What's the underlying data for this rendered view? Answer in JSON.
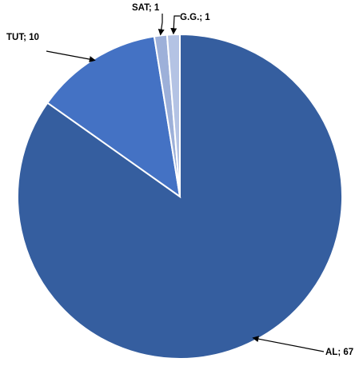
{
  "chart_data": {
    "type": "pie",
    "title": "",
    "slices": [
      {
        "label": "AL",
        "value": 67,
        "color": "#355e9f"
      },
      {
        "label": "TUT",
        "value": 10,
        "color": "#4472c4"
      },
      {
        "label": "SAT",
        "value": 1,
        "color": "#9db0d9"
      },
      {
        "label": "G.G.",
        "value": 1,
        "color": "#b4c3e4"
      }
    ],
    "data_labels": [
      "AL; 67",
      "TUT; 10",
      "SAT; 1",
      "G.G.; 1"
    ],
    "start_angle_deg": 0,
    "direction": "clockwise",
    "legend": "none"
  }
}
